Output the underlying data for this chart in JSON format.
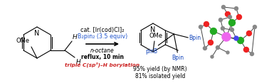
{
  "background_color": "#ffffff",
  "figsize": [
    3.78,
    1.17
  ],
  "dpi": 100,
  "above_arrow": [
    {
      "text": "cat. [Ir(cod)Cl]₂",
      "color": "#000000",
      "fontsize": 5.8,
      "style": "normal",
      "weight": "normal"
    },
    {
      "text": "B₂pin₂ (3.5 equiv)",
      "color": "#2255cc",
      "fontsize": 5.8,
      "style": "normal",
      "weight": "normal"
    }
  ],
  "below_arrow": [
    {
      "text": "n-octane",
      "color": "#000000",
      "fontsize": 5.5,
      "style": "italic",
      "weight": "normal"
    },
    {
      "text": "reflux, 10 min",
      "color": "#000000",
      "fontsize": 5.5,
      "style": "normal",
      "weight": "bold"
    },
    {
      "text": "triple C(sp³)–H borylation",
      "color": "#cc2222",
      "fontsize": 5.3,
      "style": "italic",
      "weight": "bold"
    }
  ],
  "yield_text": [
    {
      "text": "95% yield (by NMR)",
      "fontsize": 5.5,
      "color": "#000000"
    },
    {
      "text": "81% isolated yield",
      "fontsize": 5.5,
      "color": "#000000"
    }
  ],
  "bpin_color": "#1144bb",
  "atom_colors": {
    "Ir": "#ee66ee",
    "B": "#22aa22",
    "O": "#ee2222",
    "N": "#4444ee",
    "C": "#888888",
    "H": "#aaaaaa"
  }
}
